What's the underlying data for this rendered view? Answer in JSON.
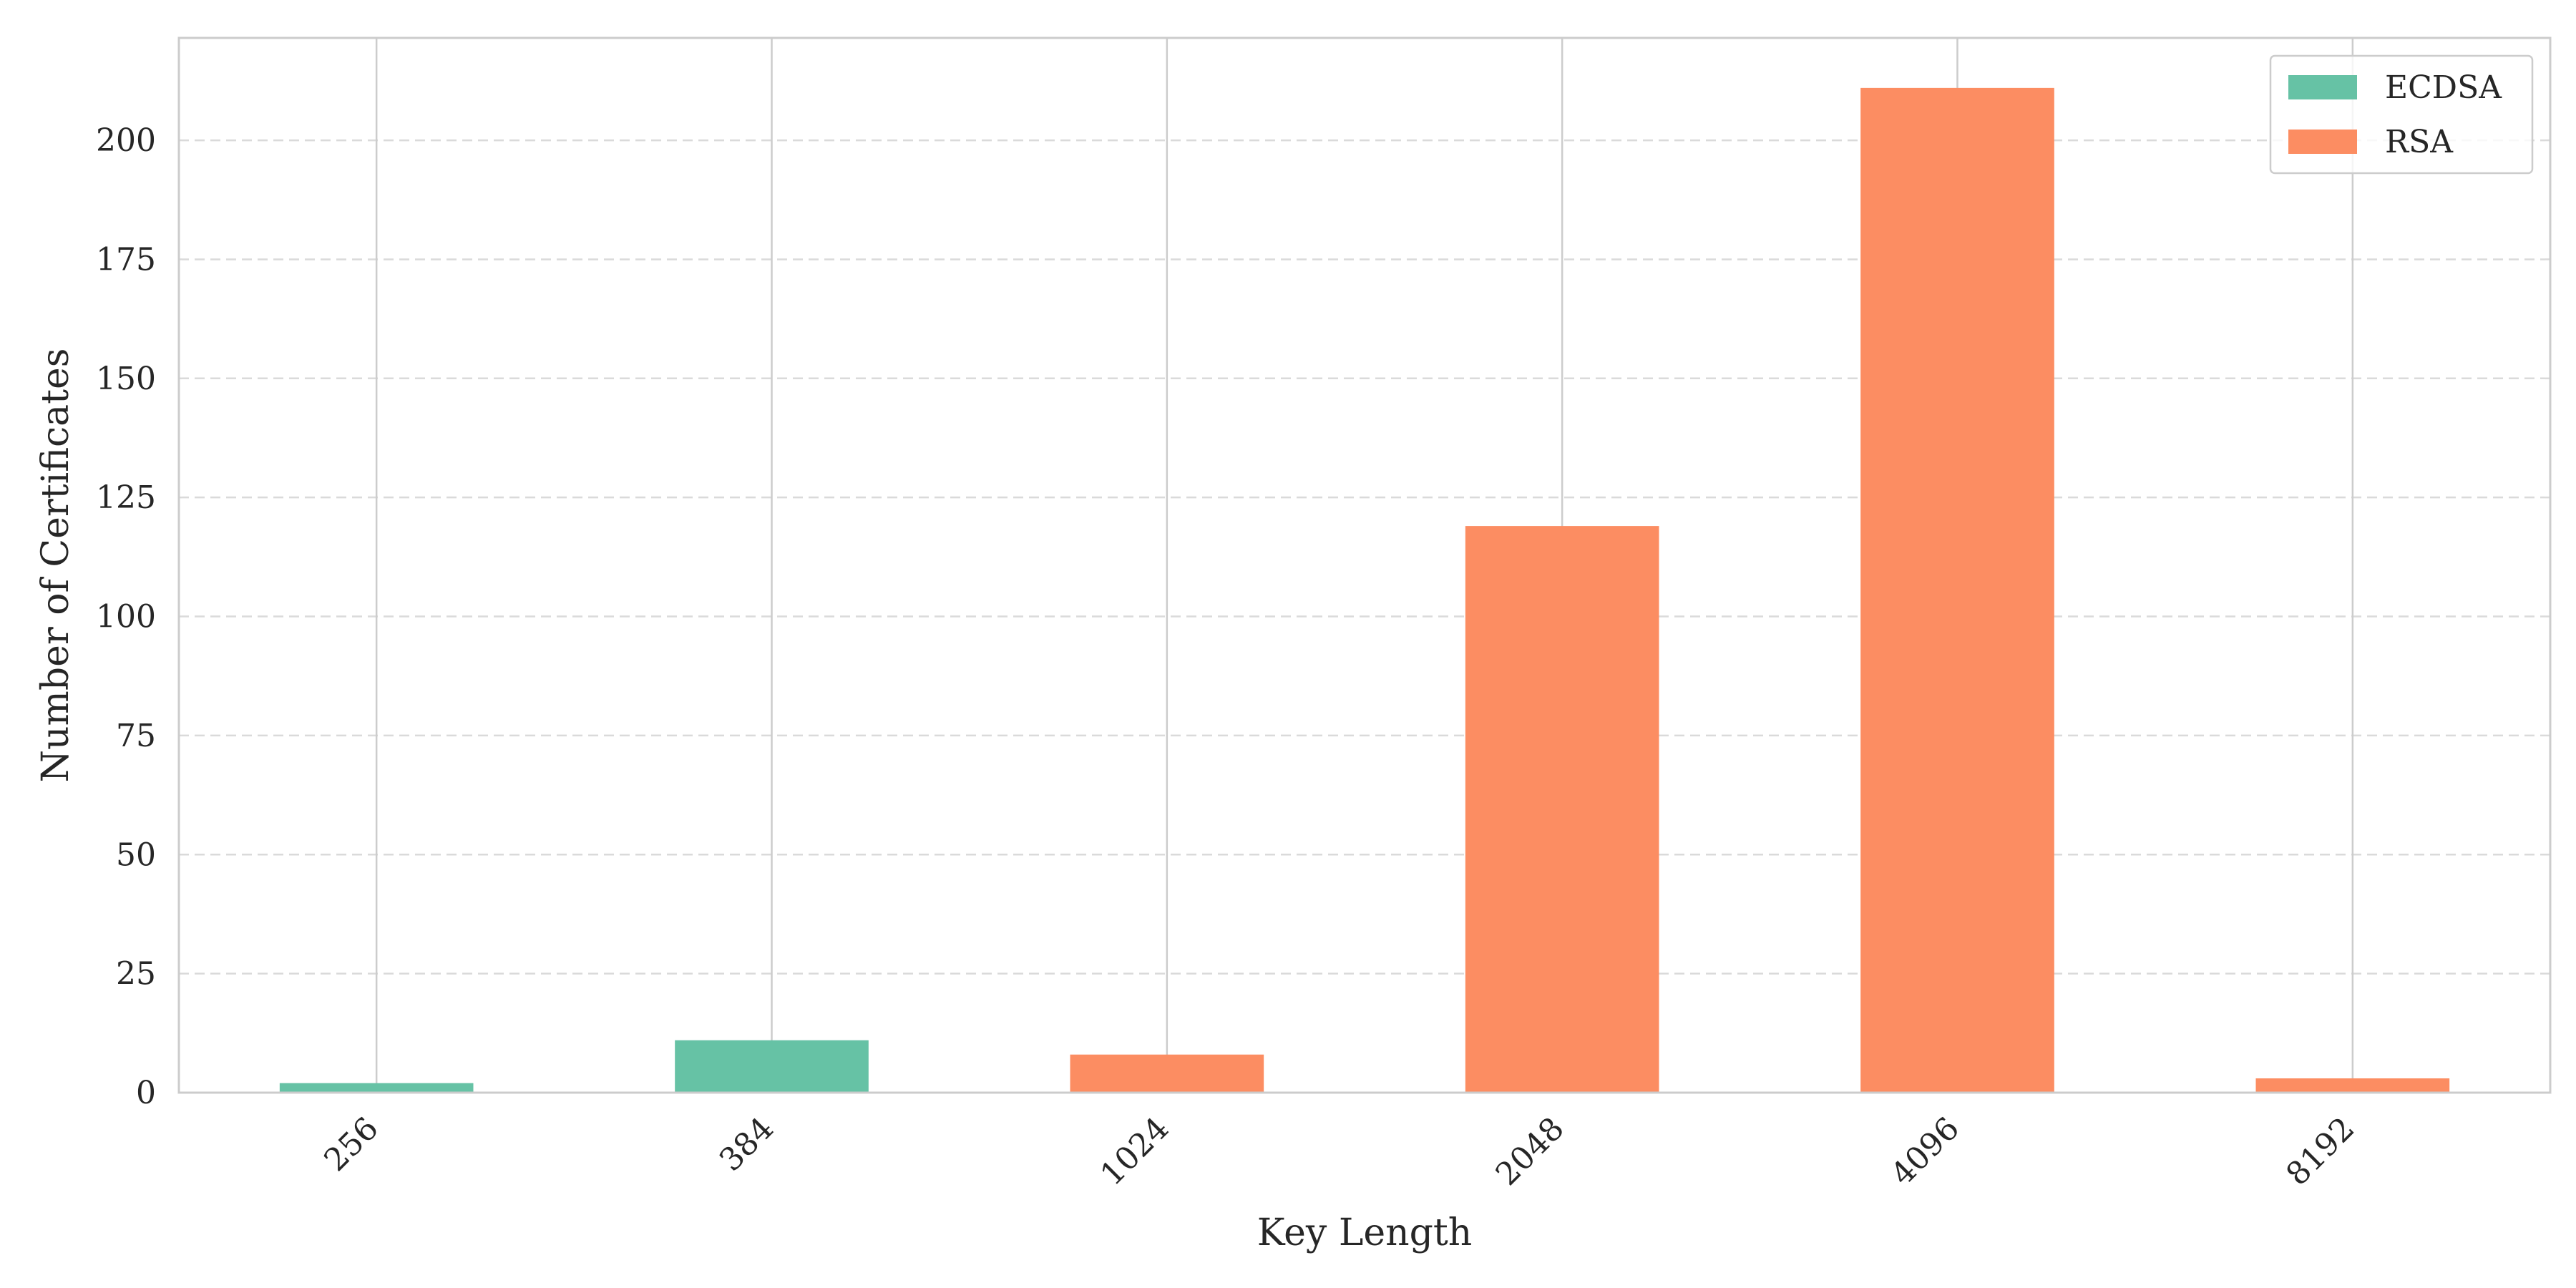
{
  "chart_data": {
    "type": "bar",
    "stacked": true,
    "xlabel": "Key Length",
    "ylabel": "Number of Certificates",
    "categories": [
      "256",
      "384",
      "1024",
      "2048",
      "4096",
      "8192"
    ],
    "series": [
      {
        "name": "ECDSA",
        "color": "#66c2a5",
        "values": [
          2,
          11,
          0,
          0,
          0,
          0
        ]
      },
      {
        "name": "RSA",
        "color": "#fc8d62",
        "values": [
          0,
          0,
          8,
          119,
          211,
          3
        ]
      }
    ],
    "ylim": [
      0,
      221.5
    ],
    "yticks": [
      0,
      25,
      50,
      75,
      100,
      125,
      150,
      175,
      200
    ],
    "grid": {
      "y": "dashed",
      "x": "solid, at category centers"
    },
    "legend_position": "top-right",
    "x_tick_rotation": -45
  }
}
